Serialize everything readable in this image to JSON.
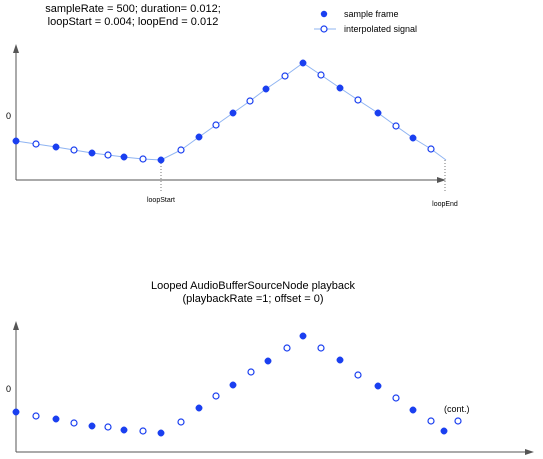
{
  "header": {
    "line1": "sampleRate = 500; duration= 0.012;",
    "line2": "loopStart = 0.004; loopEnd = 0.012"
  },
  "legend": {
    "sample_frame": "sample frame",
    "interpolated": "interpolated signal"
  },
  "top_plot": {
    "zero_label": "0",
    "loop_start_label": "loopStart",
    "loop_end_label": "loopEnd",
    "filled_points": [
      [
        16,
        141
      ],
      [
        56,
        147
      ],
      [
        92,
        153
      ],
      [
        124,
        157
      ],
      [
        161,
        160
      ],
      [
        199,
        137
      ],
      [
        233,
        113
      ],
      [
        266,
        89
      ],
      [
        303,
        63
      ],
      [
        340,
        88
      ],
      [
        378,
        113
      ],
      [
        413,
        138
      ]
    ],
    "open_points": [
      [
        36,
        144
      ],
      [
        74,
        150
      ],
      [
        108,
        155
      ],
      [
        143,
        159
      ],
      [
        181,
        150
      ],
      [
        216,
        125
      ],
      [
        250,
        101
      ],
      [
        285,
        76
      ],
      [
        321,
        75
      ],
      [
        358,
        100
      ],
      [
        396,
        126
      ],
      [
        431,
        149
      ]
    ],
    "line_end": [
      446,
      160
    ]
  },
  "bottom_plot": {
    "title_line1": "Looped AudioBufferSourceNode playback",
    "title_line2": "(playbackRate =1; offset = 0)",
    "zero_label": "0",
    "cont_label": "(cont.)",
    "filled_points": [
      [
        16,
        412
      ],
      [
        56,
        419
      ],
      [
        92,
        426
      ],
      [
        124,
        430
      ],
      [
        161,
        433
      ],
      [
        199,
        408
      ],
      [
        233,
        385
      ],
      [
        268,
        361
      ],
      [
        303,
        336
      ],
      [
        340,
        360
      ],
      [
        378,
        386
      ],
      [
        413,
        410
      ],
      [
        444,
        431
      ]
    ],
    "open_points": [
      [
        36,
        416
      ],
      [
        74,
        423
      ],
      [
        108,
        427
      ],
      [
        143,
        431
      ],
      [
        181,
        422
      ],
      [
        216,
        396
      ],
      [
        251,
        372
      ],
      [
        287,
        348
      ],
      [
        321,
        348
      ],
      [
        358,
        375
      ],
      [
        396,
        398
      ],
      [
        431,
        421
      ],
      [
        458,
        421
      ]
    ]
  },
  "colors": {
    "sample": "#1a3ff0",
    "line": "#8fb4f2",
    "axis": "#555555"
  }
}
